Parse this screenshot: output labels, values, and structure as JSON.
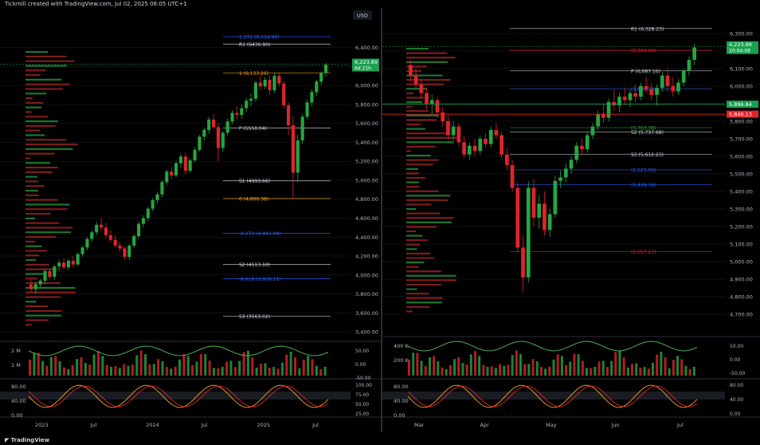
{
  "header": {
    "caption": "Tickmill created with TradingView.com, Jul 02, 2025 08:05 UTC+1"
  },
  "footer": {
    "brand": "TradingView"
  },
  "colors": {
    "up": "#26a641",
    "down": "#e0242a",
    "bg": "#000000",
    "grid": "#1c1f26",
    "orange": "#f7a21b",
    "fib": "#2962ff",
    "price_tag": "#1aa050",
    "sell_tag": "#e0242a"
  },
  "chart_data": [
    {
      "id": "left",
      "type": "candlestick",
      "currency": "USD",
      "price_scale": {
        "ticks": [
          6400,
          6200,
          6000,
          5800,
          5600,
          5400,
          5200,
          5000,
          4800,
          4600,
          4400,
          4200,
          4000,
          3800,
          3600,
          3400
        ],
        "range": [
          3350,
          6700
        ]
      },
      "time_labels": [
        "2023",
        "Jul",
        "2024",
        "Jul",
        "2025",
        "Jul"
      ],
      "last_price": {
        "value": "6,223.89",
        "countdown": "6d 21h"
      },
      "levels": [
        {
          "label": "1.272 (6,514.90)",
          "value": 6514.9,
          "kind": "fib"
        },
        {
          "label": "R1 (6436.90)",
          "value": 6436.9,
          "kind": "pivot"
        },
        {
          "label": "1 (6,133.26)",
          "value": 6133.3,
          "kind": "fib_main"
        },
        {
          "label": "P (5550.04)",
          "value": 5550,
          "kind": "pivot"
        },
        {
          "label": "S1 (4993.66)",
          "value": 4993.7,
          "kind": "pivot"
        },
        {
          "label": "0 (4,806.38)",
          "value": 4806.4,
          "kind": "fib_main"
        },
        {
          "label": "-0.272 (4,441.08)",
          "value": 4441.1,
          "kind": "fib"
        },
        {
          "label": "S2 (4113.10)",
          "value": 4113.1,
          "kind": "pivot"
        },
        {
          "label": "-0.618 (3,959.21)",
          "value": 3959.2,
          "kind": "fib"
        },
        {
          "label": "S3 (3563.02)",
          "value": 3563,
          "kind": "pivot"
        }
      ],
      "candles": [
        [
          3900,
          3950,
          3810,
          3850
        ],
        [
          3850,
          3930,
          3800,
          3900
        ],
        [
          3900,
          3960,
          3870,
          3940
        ],
        [
          3940,
          4060,
          3900,
          4040
        ],
        [
          4040,
          4070,
          3960,
          3980
        ],
        [
          3980,
          4110,
          3950,
          4090
        ],
        [
          4090,
          4160,
          4040,
          4130
        ],
        [
          4130,
          4180,
          4060,
          4080
        ],
        [
          4080,
          4170,
          4050,
          4150
        ],
        [
          4150,
          4200,
          4080,
          4110
        ],
        [
          4110,
          4240,
          4100,
          4220
        ],
        [
          4220,
          4310,
          4190,
          4290
        ],
        [
          4290,
          4400,
          4260,
          4380
        ],
        [
          4380,
          4470,
          4350,
          4450
        ],
        [
          4450,
          4560,
          4420,
          4530
        ],
        [
          4530,
          4600,
          4460,
          4500
        ],
        [
          4500,
          4550,
          4390,
          4420
        ],
        [
          4420,
          4470,
          4350,
          4370
        ],
        [
          4370,
          4420,
          4290,
          4310
        ],
        [
          4310,
          4350,
          4240,
          4280
        ],
        [
          4280,
          4300,
          4170,
          4190
        ],
        [
          4190,
          4330,
          4160,
          4310
        ],
        [
          4310,
          4430,
          4280,
          4410
        ],
        [
          4410,
          4560,
          4390,
          4540
        ],
        [
          4540,
          4630,
          4500,
          4600
        ],
        [
          4600,
          4720,
          4570,
          4700
        ],
        [
          4700,
          4810,
          4670,
          4790
        ],
        [
          4790,
          4880,
          4750,
          4850
        ],
        [
          4850,
          5000,
          4820,
          4980
        ],
        [
          4980,
          5110,
          4950,
          5090
        ],
        [
          5090,
          5140,
          5010,
          5050
        ],
        [
          5050,
          5200,
          5030,
          5180
        ],
        [
          5180,
          5280,
          5130,
          5250
        ],
        [
          5250,
          5290,
          5060,
          5100
        ],
        [
          5100,
          5230,
          5080,
          5210
        ],
        [
          5210,
          5350,
          5190,
          5320
        ],
        [
          5320,
          5480,
          5300,
          5460
        ],
        [
          5460,
          5560,
          5420,
          5530
        ],
        [
          5530,
          5670,
          5490,
          5640
        ],
        [
          5640,
          5700,
          5540,
          5560
        ],
        [
          5560,
          5600,
          5200,
          5340
        ],
        [
          5340,
          5520,
          5300,
          5500
        ],
        [
          5500,
          5650,
          5470,
          5620
        ],
        [
          5620,
          5740,
          5590,
          5710
        ],
        [
          5710,
          5780,
          5640,
          5690
        ],
        [
          5690,
          5800,
          5650,
          5760
        ],
        [
          5760,
          5870,
          5720,
          5840
        ],
        [
          5840,
          5920,
          5780,
          5860
        ],
        [
          5860,
          6050,
          5830,
          6030
        ],
        [
          6030,
          6100,
          5950,
          5990
        ],
        [
          5990,
          6090,
          5960,
          6060
        ],
        [
          6060,
          6110,
          5900,
          5950
        ],
        [
          5950,
          6130,
          5920,
          6100
        ],
        [
          6100,
          6140,
          5990,
          6020
        ],
        [
          6020,
          6050,
          5760,
          5790
        ],
        [
          5790,
          5820,
          5480,
          5580
        ],
        [
          5580,
          5680,
          4810,
          5080
        ],
        [
          5080,
          5480,
          4980,
          5420
        ],
        [
          5420,
          5700,
          5380,
          5670
        ],
        [
          5670,
          5850,
          5640,
          5820
        ],
        [
          5820,
          5960,
          5780,
          5930
        ],
        [
          5930,
          6060,
          5890,
          6040
        ],
        [
          6040,
          6150,
          6000,
          6130
        ],
        [
          6130,
          6240,
          6090,
          6220
        ]
      ],
      "volume": {
        "ticks": [
          "2 M",
          "1 M"
        ],
        "osc_ticks": [
          "50.00",
          "0.00",
          "-50.00"
        ]
      },
      "stoch": {
        "ticks": [
          "80.00",
          "40.00",
          "0.00"
        ],
        "right_ticks": [
          "100.00",
          "75.00",
          "50.00",
          "25.00"
        ]
      }
    },
    {
      "id": "right",
      "type": "candlestick",
      "price_scale": {
        "ticks": [
          6300,
          6200,
          6100,
          6000,
          5900,
          5800,
          5700,
          5600,
          5500,
          5400,
          5300,
          5200,
          5100,
          5000,
          4900,
          4800,
          4700
        ],
        "range": [
          4650,
          6400
        ]
      },
      "time_labels": [
        "Mar",
        "Apr",
        "May",
        "Jun",
        "Jul"
      ],
      "last_price": {
        "value": "6,223.89",
        "countdown": "20:04:08"
      },
      "tags": [
        {
          "value": "5,896.84",
          "kind": "buy"
        },
        {
          "value": "5,840.13",
          "kind": "sell"
        }
      ],
      "levels": [
        {
          "label": "R1 (6,328.23)",
          "value": 6328.2,
          "kind": "pivot"
        },
        {
          "label": "(6,204.06)",
          "value": 6204,
          "kind": "fib_red"
        },
        {
          "label": "P (6,087.16)",
          "value": 6087.2,
          "kind": "pivot"
        },
        {
          "label": "(5,983.78)",
          "value": 5983.8,
          "kind": "fib"
        },
        {
          "label": "(5,763.38)",
          "value": 5763.4,
          "kind": "fib_green"
        },
        {
          "label": "S2 (5,737.68)",
          "value": 5737.7,
          "kind": "pivot"
        },
        {
          "label": "S3 (5,612.23)",
          "value": 5612.2,
          "kind": "pivot"
        },
        {
          "label": "(5,523.05)",
          "value": 5523,
          "kind": "fib"
        },
        {
          "label": "(5,439.59)",
          "value": 5439.6,
          "kind": "fib"
        },
        {
          "label": "(5,057.23)",
          "value": 5057.2,
          "kind": "fib_red"
        }
      ],
      "candles": [
        [
          6120,
          6150,
          6030,
          6060
        ],
        [
          6060,
          6100,
          5990,
          6010
        ],
        [
          6010,
          6040,
          5930,
          5960
        ],
        [
          5960,
          5990,
          5870,
          5900
        ],
        [
          5900,
          5950,
          5840,
          5920
        ],
        [
          5920,
          5940,
          5820,
          5850
        ],
        [
          5850,
          5880,
          5770,
          5800
        ],
        [
          5800,
          5830,
          5700,
          5720
        ],
        [
          5720,
          5800,
          5690,
          5770
        ],
        [
          5770,
          5790,
          5660,
          5680
        ],
        [
          5680,
          5720,
          5590,
          5610
        ],
        [
          5610,
          5680,
          5580,
          5660
        ],
        [
          5660,
          5700,
          5600,
          5630
        ],
        [
          5630,
          5720,
          5610,
          5700
        ],
        [
          5700,
          5730,
          5650,
          5670
        ],
        [
          5670,
          5770,
          5650,
          5750
        ],
        [
          5750,
          5790,
          5700,
          5720
        ],
        [
          5720,
          5740,
          5590,
          5610
        ],
        [
          5610,
          5650,
          5520,
          5550
        ],
        [
          5550,
          5580,
          5400,
          5420
        ],
        [
          5420,
          5450,
          5050,
          5080
        ],
        [
          5080,
          5150,
          4830,
          4910
        ],
        [
          4910,
          5460,
          4880,
          5420
        ],
        [
          5420,
          5470,
          5200,
          5250
        ],
        [
          5250,
          5380,
          5190,
          5330
        ],
        [
          5330,
          5400,
          5150,
          5180
        ],
        [
          5180,
          5300,
          5140,
          5270
        ],
        [
          5270,
          5490,
          5250,
          5460
        ],
        [
          5460,
          5520,
          5420,
          5480
        ],
        [
          5480,
          5560,
          5450,
          5530
        ],
        [
          5530,
          5600,
          5500,
          5580
        ],
        [
          5580,
          5680,
          5560,
          5660
        ],
        [
          5660,
          5700,
          5610,
          5640
        ],
        [
          5640,
          5740,
          5620,
          5720
        ],
        [
          5720,
          5790,
          5700,
          5770
        ],
        [
          5770,
          5860,
          5750,
          5840
        ],
        [
          5840,
          5900,
          5790,
          5820
        ],
        [
          5820,
          5930,
          5800,
          5910
        ],
        [
          5910,
          5980,
          5860,
          5890
        ],
        [
          5890,
          5960,
          5850,
          5940
        ],
        [
          5940,
          5990,
          5890,
          5920
        ],
        [
          5920,
          5980,
          5880,
          5960
        ],
        [
          5960,
          6010,
          5910,
          5940
        ],
        [
          5940,
          6020,
          5920,
          6000
        ],
        [
          6000,
          6050,
          5960,
          5980
        ],
        [
          5980,
          6020,
          5920,
          5950
        ],
        [
          5950,
          6010,
          5890,
          5990
        ],
        [
          5990,
          6080,
          5970,
          6060
        ],
        [
          6060,
          6100,
          5970,
          6000
        ],
        [
          6000,
          6050,
          5940,
          5970
        ],
        [
          5970,
          6040,
          5950,
          6020
        ],
        [
          6020,
          6100,
          6000,
          6090
        ],
        [
          6090,
          6170,
          6060,
          6150
        ],
        [
          6150,
          6240,
          6120,
          6220
        ]
      ],
      "volume": {
        "ticks": [
          "400 K",
          "200 K"
        ],
        "osc_ticks": [
          "50.00",
          "0.00",
          "-50.00"
        ]
      },
      "stoch": {
        "ticks": [
          "80.00",
          "40.00",
          "0.00"
        ],
        "right_ticks": [
          "80.00",
          "40.00",
          "0.00"
        ]
      }
    }
  ]
}
